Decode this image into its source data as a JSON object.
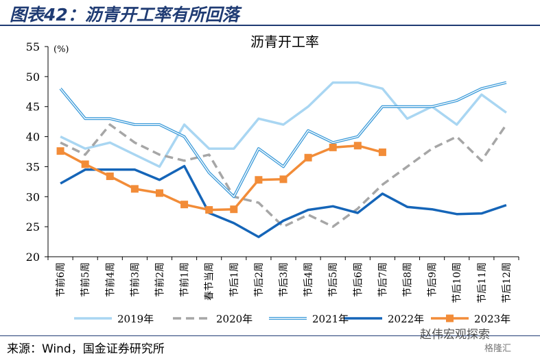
{
  "figure_title": "图表42：沥青开工率有所回落",
  "source": "来源：Wind，国金证券研究所",
  "watermark": "赵伟宏观探索",
  "watermark_sub": "格隆汇",
  "chart_data": {
    "type": "line",
    "title": "沥青开工率",
    "ylabel": "(%)",
    "ylim": [
      20,
      55
    ],
    "yticks": [
      20,
      25,
      30,
      35,
      40,
      45,
      50,
      55
    ],
    "grid": false,
    "legend_position": "bottom",
    "categories": [
      "节前6周",
      "节前5周",
      "节前4周",
      "节前3周",
      "节前2周",
      "节前1周",
      "春节当周",
      "节后1周",
      "节后2周",
      "节后3周",
      "节后4周",
      "节后5周",
      "节后6周",
      "节后7周",
      "节后8周",
      "节后9周",
      "节后10周",
      "节后11周",
      "节后12周"
    ],
    "series": [
      {
        "name": "2019年",
        "color": "#a9d6f2",
        "style": "solid-thick",
        "values": [
          40,
          38,
          39,
          37,
          35,
          42,
          38,
          38,
          43,
          42,
          45,
          49,
          49,
          48,
          43,
          45,
          42,
          47,
          44
        ]
      },
      {
        "name": "2020年",
        "color": "#a6a6a6",
        "style": "dashed",
        "values": [
          39,
          37,
          42,
          39,
          37,
          36,
          37,
          30,
          29,
          25,
          27,
          25,
          28,
          32,
          35,
          38,
          40,
          36,
          42
        ]
      },
      {
        "name": "2021年",
        "color": "#3a9ad9",
        "style": "double",
        "values": [
          48,
          43,
          43,
          42,
          42,
          40,
          34,
          30,
          38,
          35,
          41,
          39,
          40,
          45,
          45,
          45,
          46,
          48,
          49
        ]
      },
      {
        "name": "2022年",
        "color": "#1565b8",
        "style": "solid-thick",
        "values": [
          32.2,
          34.5,
          34.5,
          34.5,
          32.8,
          35.1,
          27.3,
          25.6,
          23.3,
          26.0,
          27.8,
          28.4,
          27.3,
          30.5,
          28.3,
          27.9,
          27.1,
          27.2,
          28.6
        ]
      },
      {
        "name": "2023年",
        "color": "#f28c38",
        "style": "line-square",
        "values": [
          37.6,
          35.4,
          33.4,
          31.3,
          30.6,
          28.7,
          27.8,
          27.9,
          32.8,
          32.9,
          36.5,
          38.2,
          38.5,
          37.4,
          null,
          null,
          null,
          null,
          null
        ]
      }
    ]
  }
}
